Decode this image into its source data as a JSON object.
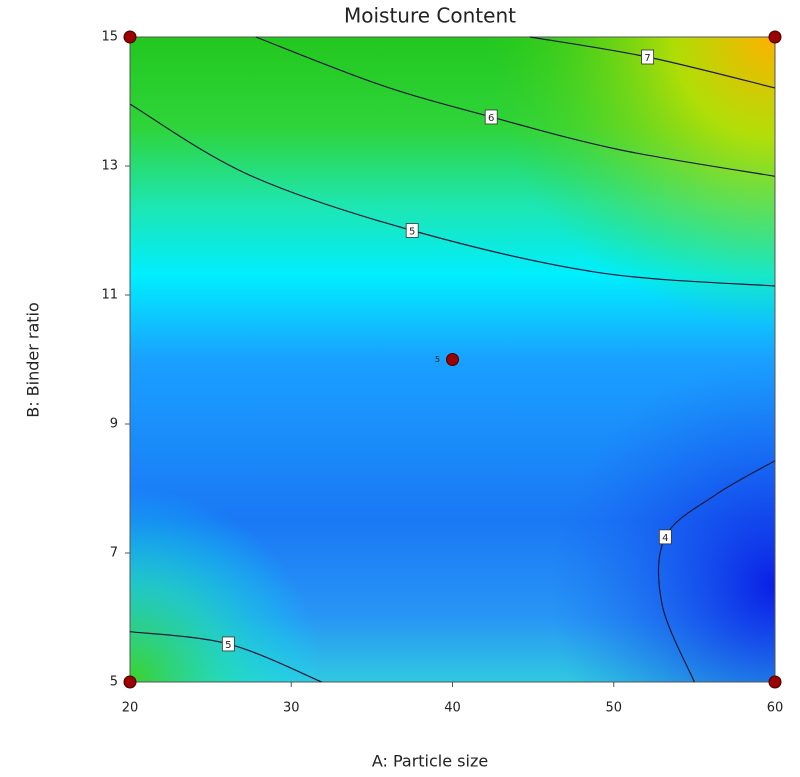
{
  "chart_data": {
    "type": "contour",
    "title": "Moisture Content",
    "x_label": "A: Particle size",
    "y_label": "B: Binder ratio",
    "xlim": [
      20,
      60
    ],
    "xticks": [
      20,
      30,
      40,
      50,
      60
    ],
    "ylim": [
      5,
      15
    ],
    "yticks": [
      5,
      7,
      9,
      11,
      13,
      15
    ],
    "contours": [
      {
        "level": 7,
        "x": [
          44.8,
          52.1,
          60
        ],
        "y": [
          15,
          14.69,
          14.21
        ]
      },
      {
        "level": 6,
        "x": [
          27.8,
          35.5,
          42.4,
          50.4,
          60
        ],
        "y": [
          15,
          14.26,
          13.76,
          13.25,
          12.84
        ]
      },
      {
        "level": 5,
        "x": [
          20,
          27.4,
          37.5,
          49,
          60
        ],
        "y": [
          13.96,
          12.86,
          12.0,
          11.35,
          11.14
        ]
      },
      {
        "level": 5,
        "x": [
          20,
          26.1,
          31.9
        ],
        "y": [
          5.78,
          5.59,
          5
        ]
      },
      {
        "level": 4,
        "x": [
          60,
          56.3,
          53.2,
          53.0,
          55.0
        ],
        "y": [
          8.43,
          7.9,
          7.25,
          6.2,
          5
        ]
      }
    ],
    "points": {
      "color": "#9b0000",
      "x": [
        20,
        60,
        40,
        20,
        60
      ],
      "y": [
        15,
        15,
        10,
        5,
        5
      ]
    },
    "annotations": [
      {
        "text": "5",
        "x": 40,
        "y": 10
      }
    ]
  }
}
